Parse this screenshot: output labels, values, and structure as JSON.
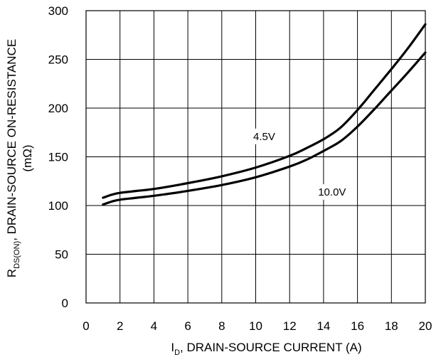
{
  "chart_data": {
    "type": "line",
    "title": "",
    "xlabel": {
      "main": "I",
      "sub": "D",
      "rest": ", DRAIN-SOURCE CURRENT (A)"
    },
    "ylabel": {
      "main": "R",
      "sub": "DS(ON)",
      "rest": ", DRAIN-SOURCE ON-RESISTANCE",
      "unit": "(mΩ)"
    },
    "xlim": [
      0,
      20
    ],
    "ylim": [
      0,
      300
    ],
    "xticks": [
      0,
      2,
      4,
      6,
      8,
      10,
      12,
      14,
      16,
      18,
      20
    ],
    "yticks": [
      0,
      50,
      100,
      150,
      200,
      250,
      300
    ],
    "xgrid": [
      0,
      2,
      4,
      6,
      8,
      10,
      12,
      14,
      16,
      18,
      20
    ],
    "ygrid": [
      0,
      50,
      100,
      150,
      200,
      250,
      300
    ],
    "grid": true,
    "series": [
      {
        "name": "4.5V",
        "x": [
          1,
          1.5,
          2,
          3,
          4,
          6,
          8,
          10,
          12,
          13,
          14,
          15,
          16,
          17,
          18,
          19,
          20
        ],
        "y": [
          108,
          111,
          113,
          115,
          117,
          123,
          130,
          139,
          151,
          159,
          168,
          180,
          198,
          219,
          240,
          262,
          286
        ]
      },
      {
        "name": "10.0V",
        "x": [
          1,
          1.5,
          2,
          3,
          4,
          6,
          8,
          10,
          12,
          13,
          14,
          15,
          16,
          17,
          18,
          19,
          20
        ],
        "y": [
          101,
          104,
          106,
          108,
          110,
          115,
          121,
          129,
          140,
          147,
          156,
          166,
          181,
          199,
          218,
          237,
          257
        ]
      }
    ],
    "annotations": [
      {
        "text": "4.5V",
        "x": 10.5,
        "y": 168
      },
      {
        "text": "10.0V",
        "x": 14.5,
        "y": 111
      }
    ]
  }
}
